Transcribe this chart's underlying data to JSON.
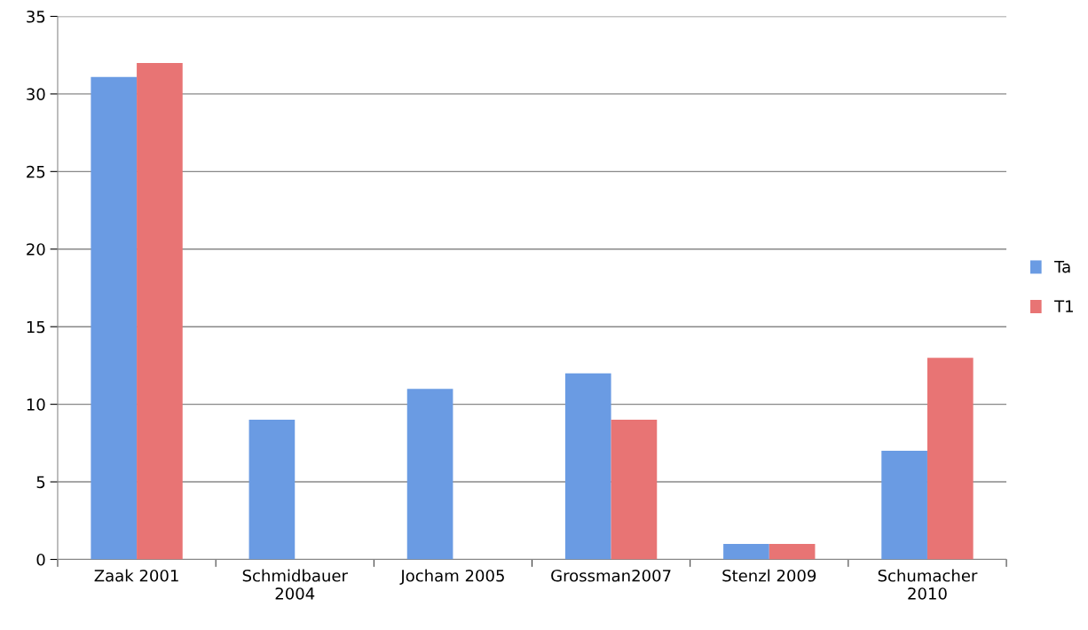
{
  "chart_data": {
    "type": "bar",
    "categories": [
      "Zaak 2001",
      "Schmidbauer\n2004",
      "Jocham 2005",
      "Grossman2007",
      "Stenzl 2009",
      "Schumacher\n2010"
    ],
    "series": [
      {
        "name": "Ta",
        "color": "#6a9be3",
        "values": [
          31.1,
          9,
          11,
          12,
          1,
          7
        ]
      },
      {
        "name": "T1",
        "color": "#e87474",
        "values": [
          32,
          null,
          null,
          9,
          1,
          13
        ]
      }
    ],
    "ylim": [
      0,
      35
    ],
    "yticks": [
      0,
      5,
      10,
      15,
      20,
      25,
      30,
      35
    ],
    "grid": "y",
    "legend": "right"
  }
}
